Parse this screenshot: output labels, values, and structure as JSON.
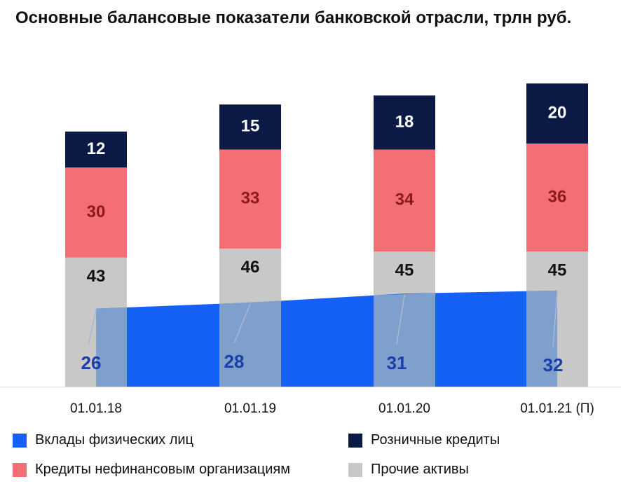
{
  "chart_data": {
    "type": "bar",
    "stacked": true,
    "title": "Основные балансовые показатели банковской отрасли, трлн руб.",
    "categories": [
      "01.01.18",
      "01.01.19",
      "01.01.20",
      "01.01.21 (П)"
    ],
    "ylim": [
      0,
      110
    ],
    "grid": false,
    "legend_position": "bottom",
    "series": [
      {
        "name": "Прочие активы",
        "values": [
          43,
          46,
          45,
          45
        ],
        "color": "#c8c8c8",
        "label_color": "#111111"
      },
      {
        "name": "Кредиты нефинансовым организациям",
        "values": [
          30,
          33,
          34,
          36
        ],
        "color": "#f46f74",
        "label_color": "#8b1a1a"
      },
      {
        "name": "Розничные кредиты",
        "values": [
          12,
          15,
          18,
          20
        ],
        "color": "#0b1a45",
        "label_color": "#ffffff"
      }
    ],
    "area_series": {
      "name": "Вклады физических лиц",
      "type": "area",
      "values": [
        26,
        28,
        31,
        32
      ],
      "color": "#1560f5",
      "label_color": "#1a3fa8"
    },
    "legend": [
      {
        "name": "Вклады физических лиц",
        "color": "#1560f5"
      },
      {
        "name": "Розничные кредиты",
        "color": "#0b1a45"
      },
      {
        "name": "Кредиты нефинансовым организациям",
        "color": "#f46f74"
      },
      {
        "name": "Прочие активы",
        "color": "#c8c8c8"
      }
    ]
  }
}
